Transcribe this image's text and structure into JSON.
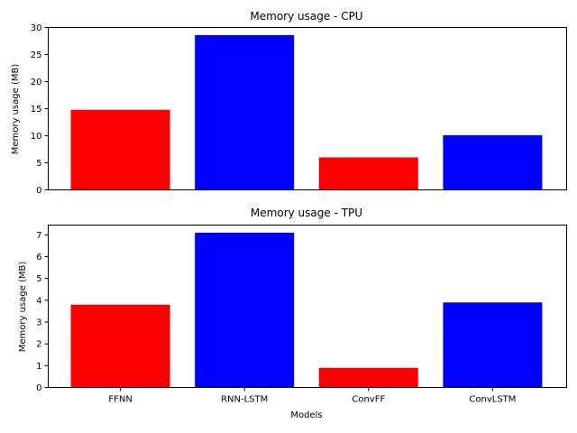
{
  "chart_data": [
    {
      "type": "bar",
      "title": "Memory usage - CPU",
      "xlabel": "",
      "ylabel": "Memory usage (MB)",
      "categories": [
        "FFNN",
        "RNN-LSTM",
        "ConvFF",
        "ConvLSTM"
      ],
      "values": [
        14.8,
        28.6,
        6.0,
        10.1
      ],
      "bar_colors": [
        "#ff0000",
        "#0000ff",
        "#ff0000",
        "#0000ff"
      ],
      "ylim": [
        0,
        30
      ],
      "yticks": [
        0,
        5,
        10,
        15,
        20,
        25,
        30
      ],
      "show_xtick_labels": false,
      "grid": false
    },
    {
      "type": "bar",
      "title": "Memory usage - TPU",
      "xlabel": "Models",
      "ylabel": "Memory usage (MB)",
      "categories": [
        "FFNN",
        "RNN-LSTM",
        "ConvFF",
        "ConvLSTM"
      ],
      "values": [
        3.8,
        7.1,
        0.9,
        3.9
      ],
      "bar_colors": [
        "#ff0000",
        "#0000ff",
        "#ff0000",
        "#0000ff"
      ],
      "ylim": [
        0,
        7.45
      ],
      "yticks": [
        0,
        1,
        2,
        3,
        4,
        5,
        6,
        7
      ],
      "show_xtick_labels": true,
      "grid": false
    }
  ]
}
